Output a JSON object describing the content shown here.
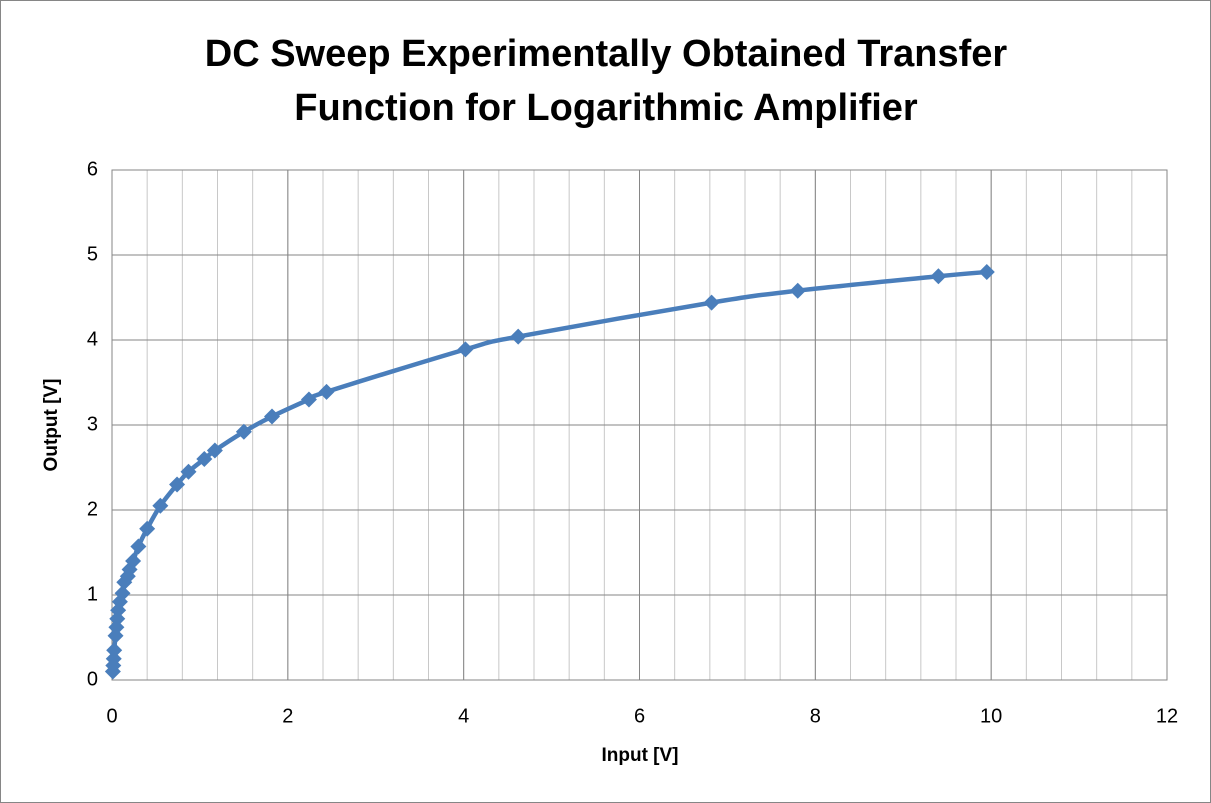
{
  "chart_data": {
    "type": "scatter_line",
    "title": "DC Sweep Experimentally Obtained Transfer Function for Logarithmic Amplifier",
    "title_lines": [
      "DC Sweep Experimentally Obtained Transfer",
      "Function for Logarithmic Amplifier"
    ],
    "x_label": "Input [V]",
    "y_label": "Output [V]",
    "x": [
      0.01,
      0.015,
      0.02,
      0.025,
      0.04,
      0.05,
      0.06,
      0.07,
      0.09,
      0.12,
      0.14,
      0.18,
      0.2,
      0.24,
      0.3,
      0.4,
      0.55,
      0.74,
      0.87,
      1.05,
      1.17,
      1.5,
      1.82,
      2.24,
      2.44,
      4.02,
      4.62,
      6.82,
      7.8,
      9.4,
      9.95
    ],
    "series": [
      {
        "name": "Output",
        "color": "#4a7ebb",
        "values": [
          0.1,
          0.17,
          0.25,
          0.35,
          0.52,
          0.62,
          0.72,
          0.82,
          0.92,
          1.02,
          1.15,
          1.22,
          1.3,
          1.4,
          1.57,
          1.78,
          2.05,
          2.3,
          2.45,
          2.6,
          2.7,
          2.92,
          3.1,
          3.3,
          3.39,
          3.89,
          4.04,
          4.44,
          4.58,
          4.75,
          4.8
        ]
      }
    ],
    "xlim": [
      0,
      12
    ],
    "xticks": [
      0,
      2,
      4,
      6,
      8,
      10,
      12
    ],
    "ylim": [
      0,
      6
    ],
    "yticks": [
      0,
      1,
      2,
      3,
      4,
      5,
      6
    ],
    "grid": true,
    "x_minor_step": 0.4
  }
}
